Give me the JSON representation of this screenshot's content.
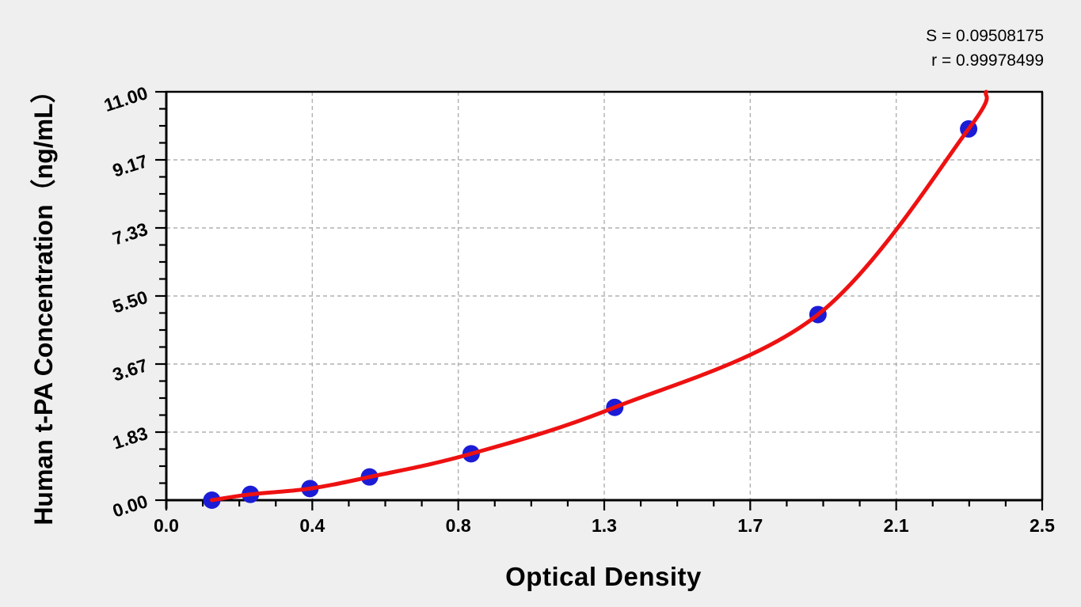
{
  "page": {
    "background_color": "#efefef",
    "plot_background_color": "#ffffff"
  },
  "stats": {
    "s_line": "S = 0.09508175",
    "r_line": "r = 0.99978499"
  },
  "chart_data": {
    "type": "scatter",
    "title": "",
    "xlabel": "Optical Density",
    "ylabel": "Human t-PA Concentration（ng/mL）",
    "xlim": [
      0,
      2.5
    ],
    "ylim": [
      0,
      11
    ],
    "x_major_tick_labels": [
      "0.0",
      "0.4",
      "0.8",
      "1.3",
      "1.7",
      "2.1",
      "2.5"
    ],
    "y_major_tick_labels": [
      "0.00",
      "1.83",
      "3.67",
      "5.50",
      "7.33",
      "9.17",
      "11.00"
    ],
    "minor_ticks_between_majors": 3,
    "grid": "dashed gray lines at major ticks",
    "legend": "none",
    "annotations": [
      "S = 0.09508175",
      "r = 0.99978499"
    ],
    "series": [
      {
        "name": "standard data points",
        "marker": "filled circle",
        "optical_density": [
          0.13,
          0.24,
          0.41,
          0.58,
          0.87,
          1.28,
          1.86,
          2.29
        ],
        "concentration_ng_ml": [
          0,
          0.156,
          0.312,
          0.625,
          1.25,
          2.5,
          5,
          10
        ]
      }
    ],
    "fit_curve": {
      "name": "regression fit curve",
      "shape": "smooth exponential-like rise through the points",
      "end_point": {
        "optical_density": 2.34,
        "concentration_ng_ml": 11
      }
    },
    "colors": {
      "point": "#1c1cd6",
      "curve": "#ee1111",
      "grid": "#b0b0b0",
      "axis": "#000000"
    }
  }
}
